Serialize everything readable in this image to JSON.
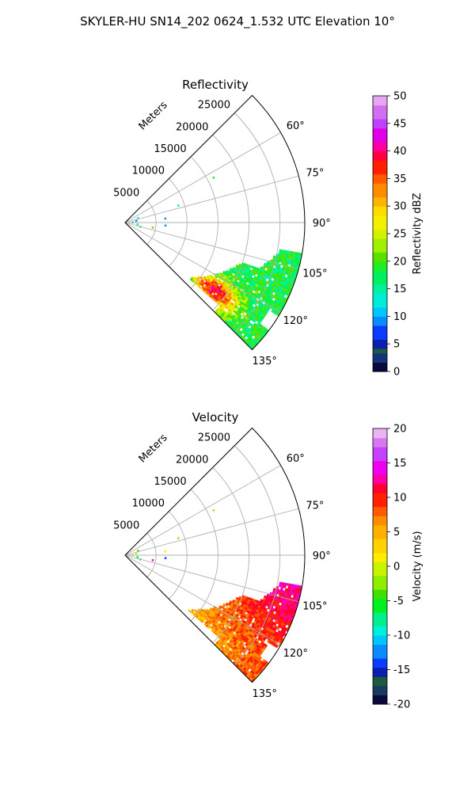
{
  "figure": {
    "suptitle": "SKYLER-HU  SN14_202  0624_1.532 UTC Elevation 10°"
  },
  "chart_data": [
    {
      "type": "polar-sector",
      "title": "Reflectivity",
      "r_label": "Meters",
      "r_ticks": [
        "5000",
        "10000",
        "15000",
        "20000",
        "25000"
      ],
      "r_values": [
        5000,
        10000,
        15000,
        20000,
        25000
      ],
      "r_max": 29000,
      "theta_ticks": [
        "60°",
        "75°",
        "90°",
        "105°",
        "120°",
        "135°"
      ],
      "theta_values": [
        60,
        75,
        90,
        105,
        120,
        135
      ],
      "theta_range": [
        45,
        135
      ],
      "grid": true,
      "colorbar": {
        "label": "Reflectivity dBZ",
        "range": [
          0,
          50
        ],
        "ticks": [
          "0",
          "5",
          "10",
          "15",
          "20",
          "25",
          "30",
          "35",
          "40",
          "45",
          "50"
        ],
        "tick_values": [
          0,
          5,
          10,
          15,
          20,
          25,
          30,
          35,
          40,
          45,
          50
        ]
      },
      "echo": {
        "main_region": {
          "theta": [
            99,
            136
          ],
          "r": [
            12500,
            28500
          ]
        },
        "near_gates": [
          {
            "theta": 63,
            "r": 16000,
            "value": 18
          },
          {
            "theta": 72,
            "r": 9000,
            "value": 12
          },
          {
            "theta": 84,
            "r": 6500,
            "value": 8
          },
          {
            "theta": 94,
            "r": 6500,
            "value": 8
          },
          {
            "theta": 100,
            "r": 4500,
            "value": 20
          },
          {
            "theta": 70,
            "r": 2200,
            "value": 12
          },
          {
            "theta": 80,
            "r": 1800,
            "value": 8
          },
          {
            "theta": 88,
            "r": 1200,
            "value": 10
          },
          {
            "theta": 98,
            "r": 2000,
            "value": 15
          },
          {
            "theta": 105,
            "r": 2500,
            "value": 18
          }
        ]
      }
    },
    {
      "type": "polar-sector",
      "title": "Velocity",
      "r_label": "Meters",
      "r_ticks": [
        "5000",
        "10000",
        "15000",
        "20000",
        "25000"
      ],
      "r_values": [
        5000,
        10000,
        15000,
        20000,
        25000
      ],
      "r_max": 29000,
      "theta_ticks": [
        "60°",
        "75°",
        "90°",
        "105°",
        "120°",
        "135°"
      ],
      "theta_values": [
        60,
        75,
        90,
        105,
        120,
        135
      ],
      "theta_range": [
        45,
        135
      ],
      "grid": true,
      "colorbar": {
        "label": "Velocity (m/s)",
        "range": [
          -20,
          20
        ],
        "ticks": [
          "-20",
          "-15",
          "-10",
          "-5",
          "0",
          "5",
          "10",
          "15",
          "20"
        ],
        "tick_values": [
          -20,
          -15,
          -10,
          -5,
          0,
          5,
          10,
          15,
          20
        ]
      },
      "echo": {
        "main_region": {
          "theta": [
            99,
            136
          ],
          "r": [
            12500,
            28500
          ]
        },
        "near_gates": [
          {
            "theta": 63,
            "r": 16000,
            "value": -2
          },
          {
            "theta": 72,
            "r": 9000,
            "value": -3
          },
          {
            "theta": 84,
            "r": 6500,
            "value": 1
          },
          {
            "theta": 94,
            "r": 6500,
            "value": -14
          },
          {
            "theta": 100,
            "r": 4500,
            "value": 14
          },
          {
            "theta": 70,
            "r": 2200,
            "value": -4
          },
          {
            "theta": 80,
            "r": 1800,
            "value": -1
          },
          {
            "theta": 88,
            "r": 1200,
            "value": 2
          },
          {
            "theta": 98,
            "r": 2000,
            "value": -6
          },
          {
            "theta": 105,
            "r": 2500,
            "value": -8
          }
        ]
      }
    }
  ]
}
